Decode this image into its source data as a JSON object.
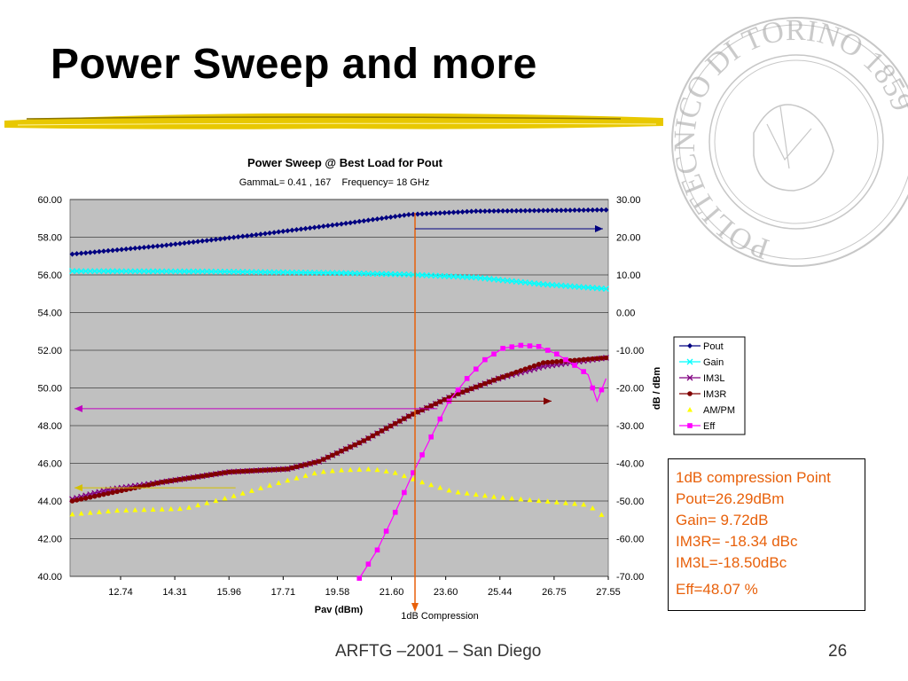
{
  "slide": {
    "title": "Power Sweep and more",
    "footer": "ARFTG –2001 – San Diego",
    "page_number": "26",
    "seal_text": "POLITECNICO DI TORINO 1859"
  },
  "callout": {
    "lines": [
      "1dB compression Point",
      "Pout=26.29dBm",
      "Gain= 9.72dB",
      "IM3R= -18.34 dBc",
      "IM3L=-18.50dBc"
    ],
    "eff": "Eff=48.07 %"
  },
  "chart_data": {
    "type": "line",
    "title": "Power Sweep @ Best Load for Pout",
    "subtitle": "GammaL= 0.41 , 167    Frequency= 18 GHz",
    "xlabel": "Pav (dBm)",
    "ylabel_right": "dB / dBm",
    "x_tick_labels": [
      "12.74",
      "14.31",
      "15.96",
      "17.71",
      "19.58",
      "21.60",
      "23.60",
      "25.44",
      "26.75",
      "27.55"
    ],
    "y_left": {
      "min": 40,
      "max": 60,
      "ticks": [
        "40.00",
        "42.00",
        "44.00",
        "46.00",
        "48.00",
        "50.00",
        "52.00",
        "54.00",
        "56.00",
        "58.00",
        "60.00"
      ]
    },
    "y_right": {
      "min": -70,
      "max": 30,
      "ticks": [
        "-70.00",
        "-60.00",
        "-50.00",
        "-40.00",
        "-30.00",
        "-20.00",
        "-10.00",
        "0.00",
        "10.00",
        "20.00",
        "30.00"
      ]
    },
    "grid": true,
    "legend_position": "right",
    "annotation": "1dB Compression",
    "colors": {
      "Pout": "#000080",
      "Gain": "#00ffff",
      "IM3L": "#800080",
      "IM3R": "#800000",
      "AM/PM": "#ffff00",
      "Eff": "#ff00ff",
      "marker_line": "#e8600a"
    },
    "n_points": 120,
    "series": [
      {
        "name": "Pout",
        "axis": "left",
        "marker": "diamond",
        "keyframes": [
          [
            0,
            57.1
          ],
          [
            20,
            57.55
          ],
          [
            40,
            58.1
          ],
          [
            60,
            58.7
          ],
          [
            75,
            59.2
          ],
          [
            90,
            59.38
          ],
          [
            119,
            59.45
          ]
        ]
      },
      {
        "name": "Gain",
        "axis": "right",
        "marker": "x",
        "keyframes": [
          [
            0,
            11.0
          ],
          [
            30,
            10.9
          ],
          [
            60,
            10.5
          ],
          [
            75,
            10.1
          ],
          [
            90,
            9.3
          ],
          [
            105,
            7.5
          ],
          [
            119,
            6.3
          ]
        ]
      },
      {
        "name": "IM3L",
        "axis": "right",
        "marker": "x",
        "keyframes": [
          [
            0,
            -49.5
          ],
          [
            8,
            -47.0
          ],
          [
            20,
            -45.0
          ],
          [
            35,
            -42.3
          ],
          [
            48,
            -41.5
          ],
          [
            55,
            -39.5
          ],
          [
            65,
            -34.0
          ],
          [
            75,
            -27.5
          ],
          [
            85,
            -22.0
          ],
          [
            95,
            -17.5
          ],
          [
            105,
            -14.3
          ],
          [
            119,
            -12.0
          ]
        ]
      },
      {
        "name": "IM3R",
        "axis": "right",
        "marker": "circle",
        "keyframes": [
          [
            0,
            -50.0
          ],
          [
            10,
            -47.5
          ],
          [
            20,
            -45.0
          ],
          [
            35,
            -42.3
          ],
          [
            48,
            -41.5
          ],
          [
            55,
            -39.5
          ],
          [
            65,
            -34.0
          ],
          [
            75,
            -27.5
          ],
          [
            85,
            -22.0
          ],
          [
            95,
            -17.5
          ],
          [
            105,
            -13.3
          ],
          [
            119,
            -12.0
          ]
        ]
      },
      {
        "name": "AM/PM",
        "axis": "right",
        "marker": "triangle",
        "keyframes": [
          [
            0,
            -53.5
          ],
          [
            10,
            -52.5
          ],
          [
            25,
            -52.0
          ],
          [
            35,
            -49.0
          ],
          [
            45,
            -45.5
          ],
          [
            55,
            -42.3
          ],
          [
            60,
            -41.8
          ],
          [
            67,
            -41.5
          ],
          [
            72,
            -42.5
          ],
          [
            78,
            -45.0
          ],
          [
            85,
            -47.5
          ],
          [
            95,
            -49.0
          ],
          [
            105,
            -50.0
          ],
          [
            115,
            -51.0
          ],
          [
            119,
            -54.5
          ]
        ]
      },
      {
        "name": "Eff",
        "axis": "right",
        "marker": "square",
        "start": 64,
        "keyframes": [
          [
            64,
            -70.5
          ],
          [
            68,
            -63.0
          ],
          [
            72,
            -53.0
          ],
          [
            76,
            -42.5
          ],
          [
            80,
            -33.0
          ],
          [
            84,
            -23.5
          ],
          [
            88,
            -17.5
          ],
          [
            92,
            -12.5
          ],
          [
            96,
            -9.5
          ],
          [
            100,
            -8.7
          ],
          [
            104,
            -9.0
          ],
          [
            108,
            -11.0
          ],
          [
            112,
            -14.0
          ],
          [
            115,
            -16.5
          ],
          [
            117,
            -23.5
          ],
          [
            119,
            -17.5
          ]
        ]
      }
    ],
    "arrows": [
      {
        "x": 77,
        "axis": "left",
        "y": 58.45,
        "direction": "right",
        "color": "#000080"
      },
      {
        "x": 82,
        "axis": "right",
        "y": -25.5,
        "direction": "left",
        "color": "#c000c0"
      },
      {
        "x": 82,
        "axis": "right",
        "y": -23.5,
        "direction": "right",
        "color": "#800000"
      },
      {
        "x": 37,
        "axis": "right",
        "y": -46.5,
        "direction": "left",
        "color": "#d4c000"
      }
    ],
    "compression_x": 77
  }
}
